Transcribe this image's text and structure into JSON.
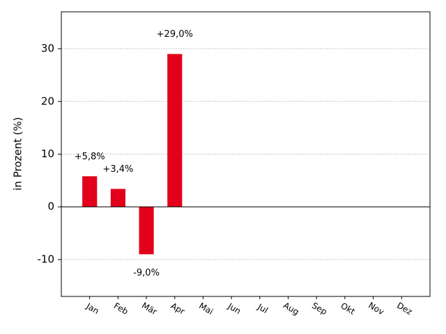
{
  "chart_data": {
    "type": "bar",
    "y_label": "in Prozent (%)",
    "categories": [
      "Jan",
      "Feb",
      "Mär",
      "Apr",
      "Mai",
      "Jun",
      "Jul",
      "Aug",
      "Sep",
      "Okt",
      "Nov",
      "Dez"
    ],
    "values": [
      5.8,
      3.4,
      -9.0,
      29.0,
      0,
      0,
      0,
      0,
      0,
      0,
      0,
      0
    ],
    "value_labels": [
      "+5,8%",
      "+3,4%",
      "-9,0%",
      "+29,0%",
      null,
      null,
      null,
      null,
      null,
      null,
      null,
      null
    ],
    "color": "#e2001a",
    "ylim": [
      -17,
      37
    ],
    "yticks": [
      -10,
      0,
      10,
      20,
      30
    ],
    "grid": true
  }
}
